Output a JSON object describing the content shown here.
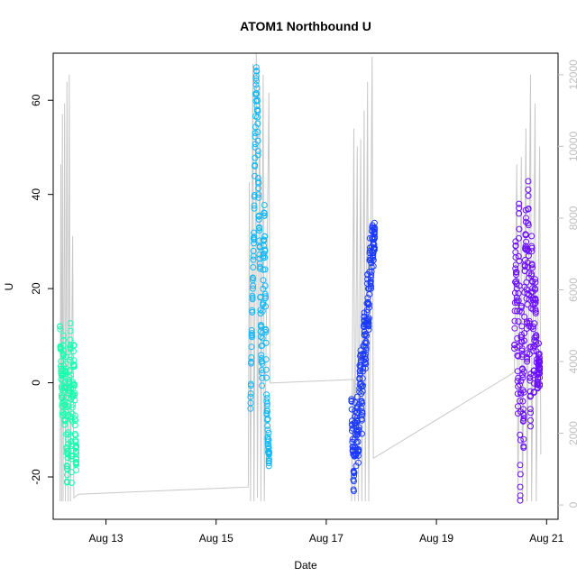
{
  "chart_data": {
    "type": "scatter",
    "title": "ATOM1 Northbound U",
    "xlabel": "Date",
    "ylabel": "U",
    "x_ticks": [
      "Aug 13",
      "Aug 15",
      "Aug 17",
      "Aug 19",
      "Aug 21"
    ],
    "xlim": [
      "2012-08-12 01:00",
      "2012-08-21 05:00"
    ],
    "ylim": [
      -29,
      70
    ],
    "y_ticks": [
      -20,
      0,
      20,
      40,
      60
    ],
    "y2lim": [
      -400,
      12600
    ],
    "y2_ticks": [
      0,
      2000,
      4000,
      6000,
      8000,
      10000,
      12000
    ],
    "grid": false,
    "series": [
      {
        "color": "#19FFB0",
        "start": "2012-08-12 04:00",
        "end": "2012-08-12 11:00",
        "points": [
          {
            "x": "2012-08-12 04:00",
            "y": 12
          },
          {
            "x": "2012-08-12 04:30",
            "y": 2
          },
          {
            "x": "2012-08-12 05:00",
            "y": -5
          },
          {
            "x": "2012-08-12 05:30",
            "y": 9
          },
          {
            "x": "2012-08-12 06:00",
            "y": -8
          },
          {
            "x": "2012-08-12 06:30",
            "y": 4
          },
          {
            "x": "2012-08-12 07:00",
            "y": -21
          },
          {
            "x": "2012-08-12 07:30",
            "y": -12
          },
          {
            "x": "2012-08-12 08:00",
            "y": 0
          },
          {
            "x": "2012-08-12 08:30",
            "y": 11
          },
          {
            "x": "2012-08-12 09:00",
            "y": -19
          },
          {
            "x": "2012-08-12 09:30",
            "y": -3
          },
          {
            "x": "2012-08-12 10:00",
            "y": 8
          },
          {
            "x": "2012-08-12 10:30",
            "y": -7
          },
          {
            "x": "2012-08-12 11:00",
            "y": -16
          }
        ]
      },
      {
        "color": "#14B8F5",
        "start": "2012-08-15 15:00",
        "end": "2012-08-15 23:00",
        "points": [
          {
            "x": "2012-08-15 15:00",
            "y": -3
          },
          {
            "x": "2012-08-15 15:30",
            "y": 10
          },
          {
            "x": "2012-08-15 16:00",
            "y": 20
          },
          {
            "x": "2012-08-15 16:30",
            "y": 31
          },
          {
            "x": "2012-08-15 17:00",
            "y": 50
          },
          {
            "x": "2012-08-15 17:30",
            "y": 67
          },
          {
            "x": "2012-08-15 18:00",
            "y": 58
          },
          {
            "x": "2012-08-15 18:30",
            "y": 40
          },
          {
            "x": "2012-08-15 19:00",
            "y": 29
          },
          {
            "x": "2012-08-15 19:30",
            "y": 12
          },
          {
            "x": "2012-08-15 20:00",
            "y": 1
          },
          {
            "x": "2012-08-15 20:30",
            "y": 24
          },
          {
            "x": "2012-08-15 21:00",
            "y": 36
          },
          {
            "x": "2012-08-15 21:30",
            "y": 18
          },
          {
            "x": "2012-08-15 22:00",
            "y": -4
          },
          {
            "x": "2012-08-15 22:30",
            "y": -10
          },
          {
            "x": "2012-08-15 23:00",
            "y": -15
          }
        ]
      },
      {
        "color": "#1C3BFF",
        "start": "2012-08-17 11:00",
        "end": "2012-08-17 21:00",
        "points": [
          {
            "x": "2012-08-17 11:00",
            "y": -4
          },
          {
            "x": "2012-08-17 11:30",
            "y": -12
          },
          {
            "x": "2012-08-17 12:00",
            "y": -23
          },
          {
            "x": "2012-08-17 12:30",
            "y": -6
          },
          {
            "x": "2012-08-17 13:00",
            "y": -15
          },
          {
            "x": "2012-08-17 13:30",
            "y": -3
          },
          {
            "x": "2012-08-17 14:00",
            "y": -17
          },
          {
            "x": "2012-08-17 14:30",
            "y": 1
          },
          {
            "x": "2012-08-17 15:00",
            "y": 6
          },
          {
            "x": "2012-08-17 15:30",
            "y": -8
          },
          {
            "x": "2012-08-17 16:00",
            "y": 3
          },
          {
            "x": "2012-08-17 16:30",
            "y": 14
          },
          {
            "x": "2012-08-17 17:00",
            "y": 5
          },
          {
            "x": "2012-08-17 17:30",
            "y": 10
          },
          {
            "x": "2012-08-17 18:00",
            "y": 22
          },
          {
            "x": "2012-08-17 18:30",
            "y": 12
          },
          {
            "x": "2012-08-17 19:00",
            "y": 28
          },
          {
            "x": "2012-08-17 19:30",
            "y": 20
          },
          {
            "x": "2012-08-17 20:00",
            "y": 33
          },
          {
            "x": "2012-08-17 20:30",
            "y": 26
          },
          {
            "x": "2012-08-17 21:00",
            "y": 31
          }
        ]
      },
      {
        "color": "#6A0DFF",
        "start": "2012-08-20 10:00",
        "end": "2012-08-20 21:00",
        "points": [
          {
            "x": "2012-08-20 10:00",
            "y": 8
          },
          {
            "x": "2012-08-20 10:30",
            "y": 30
          },
          {
            "x": "2012-08-20 11:00",
            "y": 20
          },
          {
            "x": "2012-08-20 11:30",
            "y": -5
          },
          {
            "x": "2012-08-20 12:00",
            "y": 38
          },
          {
            "x": "2012-08-20 12:30",
            "y": -25
          },
          {
            "x": "2012-08-20 13:00",
            "y": 15
          },
          {
            "x": "2012-08-20 13:30",
            "y": 3
          },
          {
            "x": "2012-08-20 14:00",
            "y": -12
          },
          {
            "x": "2012-08-20 14:30",
            "y": 25
          },
          {
            "x": "2012-08-20 15:00",
            "y": 35
          },
          {
            "x": "2012-08-20 15:30",
            "y": 5
          },
          {
            "x": "2012-08-20 16:00",
            "y": 41
          },
          {
            "x": "2012-08-20 16:30",
            "y": 12
          },
          {
            "x": "2012-08-20 17:00",
            "y": -8
          },
          {
            "x": "2012-08-20 17:30",
            "y": 29
          },
          {
            "x": "2012-08-20 18:00",
            "y": 18
          },
          {
            "x": "2012-08-20 18:30",
            "y": -2
          },
          {
            "x": "2012-08-20 19:00",
            "y": 22
          },
          {
            "x": "2012-08-20 19:30",
            "y": 10
          },
          {
            "x": "2012-08-20 20:00",
            "y": -1
          },
          {
            "x": "2012-08-20 20:30",
            "y": 6
          },
          {
            "x": "2012-08-20 21:00",
            "y": 2
          }
        ]
      }
    ],
    "secondary_series": {
      "color": "#c8c8c8",
      "type": "line",
      "points": [
        {
          "x": "2012-08-12 04:00",
          "y": 100
        },
        {
          "x": "2012-08-12 04:20",
          "y": 9500
        },
        {
          "x": "2012-08-12 04:40",
          "y": 100
        },
        {
          "x": "2012-08-12 05:00",
          "y": 10900
        },
        {
          "x": "2012-08-12 05:20",
          "y": 100
        },
        {
          "x": "2012-08-12 06:00",
          "y": 11200
        },
        {
          "x": "2012-08-12 06:20",
          "y": 100
        },
        {
          "x": "2012-08-12 07:00",
          "y": 11800
        },
        {
          "x": "2012-08-12 07:30",
          "y": 100
        },
        {
          "x": "2012-08-12 08:00",
          "y": 12000
        },
        {
          "x": "2012-08-12 08:30",
          "y": 100
        },
        {
          "x": "2012-08-12 09:30",
          "y": 7500
        },
        {
          "x": "2012-08-12 10:00",
          "y": 200
        },
        {
          "x": "2012-08-12 12:00",
          "y": 300
        },
        {
          "x": "2012-08-15 14:00",
          "y": 500
        },
        {
          "x": "2012-08-15 14:30",
          "y": 9000
        },
        {
          "x": "2012-08-15 15:00",
          "y": 100
        },
        {
          "x": "2012-08-15 16:00",
          "y": 12300
        },
        {
          "x": "2012-08-15 16:30",
          "y": 100
        },
        {
          "x": "2012-08-15 17:30",
          "y": 12600
        },
        {
          "x": "2012-08-15 18:00",
          "y": 200
        },
        {
          "x": "2012-08-15 19:00",
          "y": 11700
        },
        {
          "x": "2012-08-15 19:30",
          "y": 100
        },
        {
          "x": "2012-08-15 20:30",
          "y": 12000
        },
        {
          "x": "2012-08-15 21:00",
          "y": 100
        },
        {
          "x": "2012-08-15 23:00",
          "y": 11500
        },
        {
          "x": "2012-08-15 23:30",
          "y": 3400
        },
        {
          "x": "2012-08-17 12:00",
          "y": 3500
        },
        {
          "x": "2012-08-17 11:00",
          "y": 100
        },
        {
          "x": "2012-08-17 12:00",
          "y": 10500
        },
        {
          "x": "2012-08-17 12:30",
          "y": 100
        },
        {
          "x": "2012-08-17 13:30",
          "y": 10000
        },
        {
          "x": "2012-08-17 14:00",
          "y": 100
        },
        {
          "x": "2012-08-17 15:00",
          "y": 10200
        },
        {
          "x": "2012-08-17 15:30",
          "y": 100
        },
        {
          "x": "2012-08-17 16:30",
          "y": 11000
        },
        {
          "x": "2012-08-17 17:00",
          "y": 100
        },
        {
          "x": "2012-08-17 18:00",
          "y": 11800
        },
        {
          "x": "2012-08-17 18:30",
          "y": 100
        },
        {
          "x": "2012-08-17 20:00",
          "y": 12500
        },
        {
          "x": "2012-08-17 20:30",
          "y": 1300
        },
        {
          "x": "2012-08-20 10:00",
          "y": 3700
        },
        {
          "x": "2012-08-20 11:00",
          "y": 9500
        },
        {
          "x": "2012-08-20 11:30",
          "y": 100
        },
        {
          "x": "2012-08-20 13:00",
          "y": 9700
        },
        {
          "x": "2012-08-20 13:30",
          "y": 100
        },
        {
          "x": "2012-08-20 15:00",
          "y": 10500
        },
        {
          "x": "2012-08-20 15:30",
          "y": 100
        },
        {
          "x": "2012-08-20 17:00",
          "y": 12000
        },
        {
          "x": "2012-08-20 17:30",
          "y": 100
        },
        {
          "x": "2012-08-20 19:00",
          "y": 11200
        },
        {
          "x": "2012-08-20 19:30",
          "y": 100
        },
        {
          "x": "2012-08-20 21:00",
          "y": 10000
        },
        {
          "x": "2012-08-20 21:30",
          "y": 1400
        }
      ]
    }
  }
}
